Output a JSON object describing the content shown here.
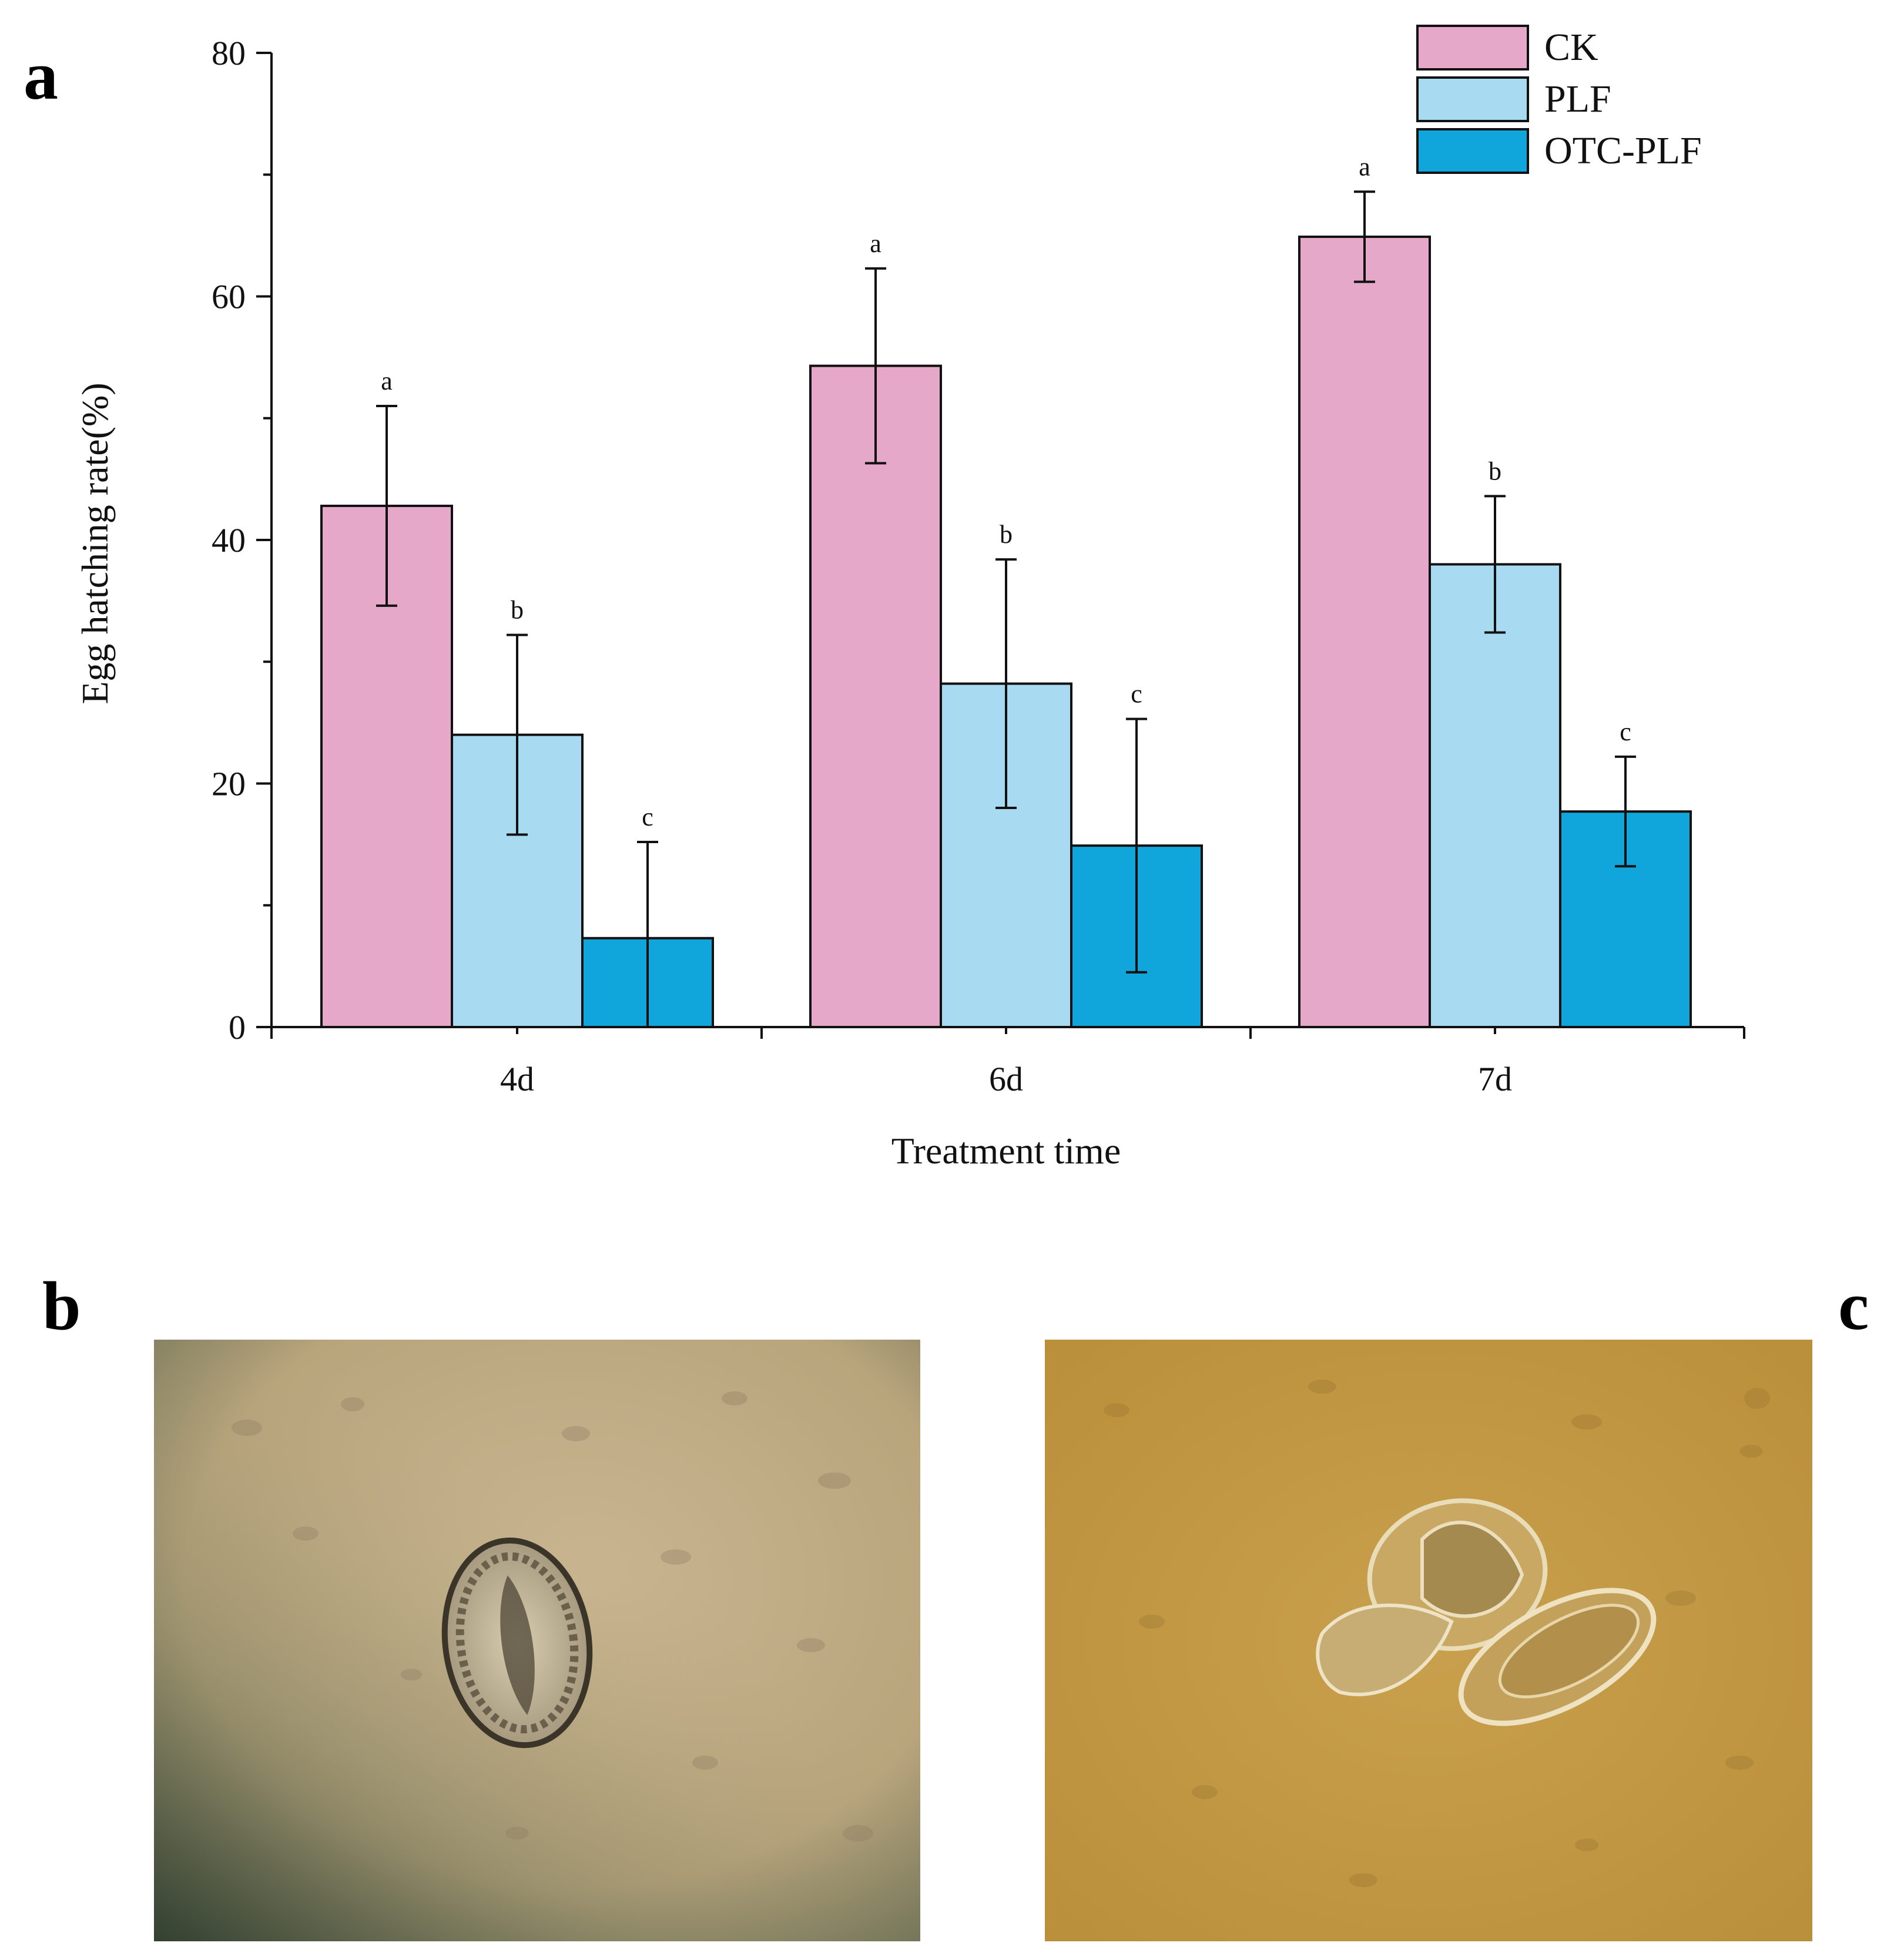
{
  "panel_labels": {
    "a": "a",
    "b": "b",
    "c": "c"
  },
  "colors": {
    "CK": "#E5A8C8",
    "PLF": "#A8DAF2",
    "OTC-PLF": "#10A6DB",
    "axis": "#111111"
  },
  "chart_data": {
    "type": "bar",
    "categories": [
      "4d",
      "6d",
      "7d"
    ],
    "xlabel": "Treatment time",
    "ylabel": "Egg hatching rate(%)",
    "ylim": [
      0,
      80
    ],
    "yticks": [
      0,
      20,
      40,
      60,
      80
    ],
    "grid": false,
    "legend_position": "top-right",
    "series": [
      {
        "name": "CK",
        "values": [
          42.8,
          54.3,
          64.9
        ],
        "errors": [
          8.2,
          8.0,
          3.7
        ],
        "letters": [
          "a",
          "a",
          "a"
        ]
      },
      {
        "name": "PLF",
        "values": [
          24.0,
          28.2,
          38.0
        ],
        "errors": [
          8.2,
          10.2,
          5.6
        ],
        "letters": [
          "b",
          "b",
          "b"
        ]
      },
      {
        "name": "OTC-PLF",
        "values": [
          7.3,
          14.9,
          17.7
        ],
        "errors": [
          7.9,
          10.4,
          4.5
        ],
        "letters": [
          "c",
          "c",
          "c"
        ]
      }
    ]
  },
  "micrographs": [
    {
      "panel": "b",
      "subject": "unhatched egg"
    },
    {
      "panel": "c",
      "subject": "hatched eggs"
    }
  ]
}
